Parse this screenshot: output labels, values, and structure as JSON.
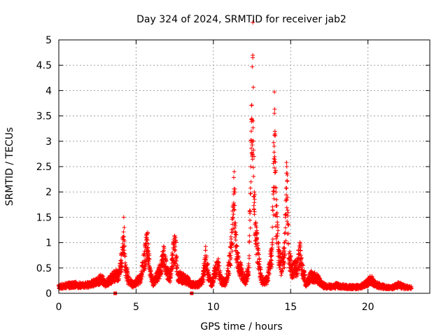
{
  "chart_data": {
    "type": "scatter",
    "title": "Day 324 of 2024, SRMTID for receiver jab2",
    "xlabel": "GPS time / hours",
    "ylabel": "SRMTID / TECUs",
    "xlim": [
      0,
      24
    ],
    "ylim": [
      0,
      5
    ],
    "xticks": [
      "0",
      "5",
      "10",
      "15",
      "20"
    ],
    "yticks": [
      "0",
      "0.5",
      "1",
      "1.5",
      "2",
      "2.5",
      "3",
      "3.5",
      "4",
      "4.5",
      "5"
    ],
    "grid": true,
    "marker": "+",
    "series": [
      {
        "name": "SRMTID",
        "color": "#ff0000",
        "anchors": [
          [
            0.0,
            0.15
          ],
          [
            0.5,
            0.18
          ],
          [
            1.0,
            0.2
          ],
          [
            1.5,
            0.18
          ],
          [
            2.0,
            0.2
          ],
          [
            2.5,
            0.28
          ],
          [
            2.8,
            0.35
          ],
          [
            3.0,
            0.22
          ],
          [
            3.3,
            0.3
          ],
          [
            3.6,
            0.4
          ],
          [
            3.9,
            0.42
          ],
          [
            4.1,
            0.9
          ],
          [
            4.2,
            1.5
          ],
          [
            4.3,
            0.6
          ],
          [
            4.5,
            0.3
          ],
          [
            4.8,
            0.2
          ],
          [
            5.0,
            0.25
          ],
          [
            5.3,
            0.35
          ],
          [
            5.6,
            0.9
          ],
          [
            5.75,
            1.2
          ],
          [
            5.9,
            0.5
          ],
          [
            6.1,
            0.25
          ],
          [
            6.4,
            0.4
          ],
          [
            6.6,
            0.6
          ],
          [
            6.8,
            0.85
          ],
          [
            7.0,
            0.5
          ],
          [
            7.2,
            0.35
          ],
          [
            7.4,
            0.9
          ],
          [
            7.55,
            1.05
          ],
          [
            7.7,
            0.4
          ],
          [
            8.0,
            0.35
          ],
          [
            8.3,
            0.3
          ],
          [
            8.6,
            0.2
          ],
          [
            9.0,
            0.2
          ],
          [
            9.3,
            0.3
          ],
          [
            9.5,
            0.85
          ],
          [
            9.7,
            0.4
          ],
          [
            9.9,
            0.2
          ],
          [
            10.1,
            0.5
          ],
          [
            10.3,
            0.65
          ],
          [
            10.5,
            0.3
          ],
          [
            10.8,
            0.25
          ],
          [
            11.0,
            0.6
          ],
          [
            11.2,
            1.2
          ],
          [
            11.35,
            2.4
          ],
          [
            11.45,
            1.2
          ],
          [
            11.6,
            0.7
          ],
          [
            11.9,
            0.4
          ],
          [
            12.1,
            0.3
          ],
          [
            12.3,
            0.6
          ],
          [
            12.45,
            3.2
          ],
          [
            12.55,
            4.65
          ],
          [
            12.65,
            2.0
          ],
          [
            12.8,
            1.2
          ],
          [
            13.0,
            0.5
          ],
          [
            13.2,
            0.25
          ],
          [
            13.5,
            0.3
          ],
          [
            13.8,
            1.0
          ],
          [
            13.95,
            3.55
          ],
          [
            14.05,
            2.0
          ],
          [
            14.2,
            1.0
          ],
          [
            14.4,
            0.6
          ],
          [
            14.6,
            0.9
          ],
          [
            14.75,
            2.5
          ],
          [
            14.9,
            0.8
          ],
          [
            15.1,
            0.5
          ],
          [
            15.4,
            0.6
          ],
          [
            15.6,
            0.9
          ],
          [
            15.8,
            0.5
          ],
          [
            16.0,
            0.2
          ],
          [
            16.3,
            0.4
          ],
          [
            16.7,
            0.35
          ],
          [
            17.0,
            0.2
          ],
          [
            17.5,
            0.15
          ],
          [
            18.0,
            0.18
          ],
          [
            18.5,
            0.15
          ],
          [
            19.0,
            0.14
          ],
          [
            19.5,
            0.15
          ],
          [
            20.0,
            0.25
          ],
          [
            20.2,
            0.32
          ],
          [
            20.5,
            0.2
          ],
          [
            21.0,
            0.15
          ],
          [
            21.5,
            0.12
          ],
          [
            22.0,
            0.2
          ],
          [
            22.3,
            0.15
          ],
          [
            22.8,
            0.12
          ]
        ],
        "x_max": 22.8,
        "zero_markers_x": [
          3.65,
          8.6
        ]
      }
    ]
  }
}
